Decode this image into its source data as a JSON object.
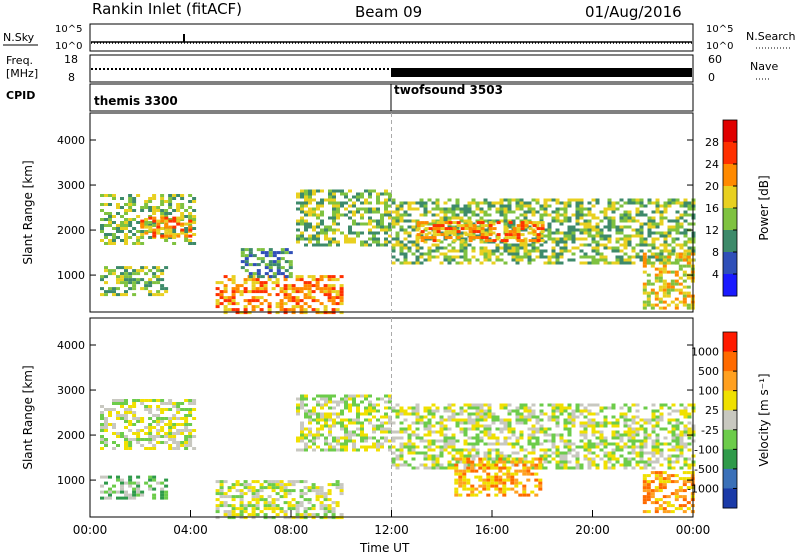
{
  "header": {
    "station": "Rankin Inlet (fitACF)",
    "beam": "Beam 09",
    "date": "01/Aug/2016"
  },
  "noise_panel": {
    "left_label": "N.Sky",
    "right_label": "N.Search",
    "left_ticks": [
      "10^5",
      "10^0"
    ],
    "right_ticks": [
      "10^5",
      "10^0"
    ]
  },
  "freq_panel": {
    "left_label_line1": "Freq.",
    "left_label_line2": "[MHz]",
    "left_ticks": [
      "18",
      "8"
    ],
    "right_label": "Nave",
    "right_ticks": [
      "60",
      "0"
    ]
  },
  "cpid_panel": {
    "label": "CPID",
    "modes": [
      {
        "name": "themis 3300",
        "start_hour": 0
      },
      {
        "name": "twofsound 3503",
        "start_hour": 12
      }
    ]
  },
  "chart_data": [
    {
      "type": "heatmap",
      "id": "power",
      "ylabel": "Slant Range [km]",
      "yticks": [
        1000,
        2000,
        3000,
        4000
      ],
      "ylim": [
        180,
        4600
      ],
      "xlim": [
        0,
        24
      ],
      "colorbar_label": "Power [dB]",
      "colorbar_ticks": [
        "4",
        "8",
        "12",
        "16",
        "20",
        "24",
        "28"
      ],
      "colorbar_colors": [
        "#1a1aff",
        "#2f4fb8",
        "#3d8a6a",
        "#7fc240",
        "#e8d020",
        "#ff8a00",
        "#ff3000",
        "#e00000"
      ],
      "echo_regions": [
        {
          "x": [
            0.4,
            4.2
          ],
          "y": [
            1700,
            2800
          ],
          "level": 3
        },
        {
          "x": [
            2.0,
            4.0
          ],
          "y": [
            1900,
            2300
          ],
          "level": 5
        },
        {
          "x": [
            8.2,
            12.0
          ],
          "y": [
            1700,
            2900
          ],
          "level": 3
        },
        {
          "x": [
            12.0,
            24.0
          ],
          "y": [
            1300,
            2700
          ],
          "level": 3
        },
        {
          "x": [
            13.0,
            18.0
          ],
          "y": [
            1800,
            2200
          ],
          "level": 5
        },
        {
          "x": [
            0.4,
            3.0
          ],
          "y": [
            600,
            1200
          ],
          "level": 3
        },
        {
          "x": [
            5.0,
            10.0
          ],
          "y": [
            200,
            1000
          ],
          "level": 5
        },
        {
          "x": [
            6.0,
            8.0
          ],
          "y": [
            1000,
            1600
          ],
          "level": 2
        },
        {
          "x": [
            22.0,
            24.0
          ],
          "y": [
            300,
            1500
          ],
          "level": 4
        }
      ]
    },
    {
      "type": "heatmap",
      "id": "velocity",
      "ylabel": "Slant Range [km]",
      "yticks": [
        1000,
        2000,
        3000,
        4000
      ],
      "ylim": [
        180,
        4600
      ],
      "xlim": [
        0,
        24
      ],
      "xlabel": "Time UT",
      "xticks": [
        "00:00",
        "04:00",
        "08:00",
        "12:00",
        "16:00",
        "20:00",
        "00:00"
      ],
      "colorbar_label": "Velocity [m s⁻¹]",
      "colorbar_ticks": [
        "1000",
        "500",
        "100",
        "25",
        "-25",
        "-100",
        "-500",
        "-1000"
      ],
      "colorbar_colors": [
        "#1a3aa8",
        "#3a70b8",
        "#2f9a4a",
        "#6ccc4a",
        "#c8c8c0",
        "#f0e000",
        "#ffa020",
        "#ff6a00",
        "#ff1a00"
      ],
      "echo_regions": [
        {
          "x": [
            0.4,
            4.2
          ],
          "y": [
            1700,
            2800
          ],
          "level": 4
        },
        {
          "x": [
            8.2,
            12.0
          ],
          "y": [
            1700,
            2900
          ],
          "level": 4
        },
        {
          "x": [
            12.0,
            24.0
          ],
          "y": [
            1300,
            2700
          ],
          "level": 4
        },
        {
          "x": [
            0.4,
            3.0
          ],
          "y": [
            600,
            1100
          ],
          "level": 3
        },
        {
          "x": [
            5.0,
            10.0
          ],
          "y": [
            200,
            1000
          ],
          "level": 4
        },
        {
          "x": [
            14.5,
            18.0
          ],
          "y": [
            700,
            1500
          ],
          "level": 6
        },
        {
          "x": [
            22.0,
            24.0
          ],
          "y": [
            300,
            1200
          ],
          "level": 6
        }
      ]
    }
  ]
}
